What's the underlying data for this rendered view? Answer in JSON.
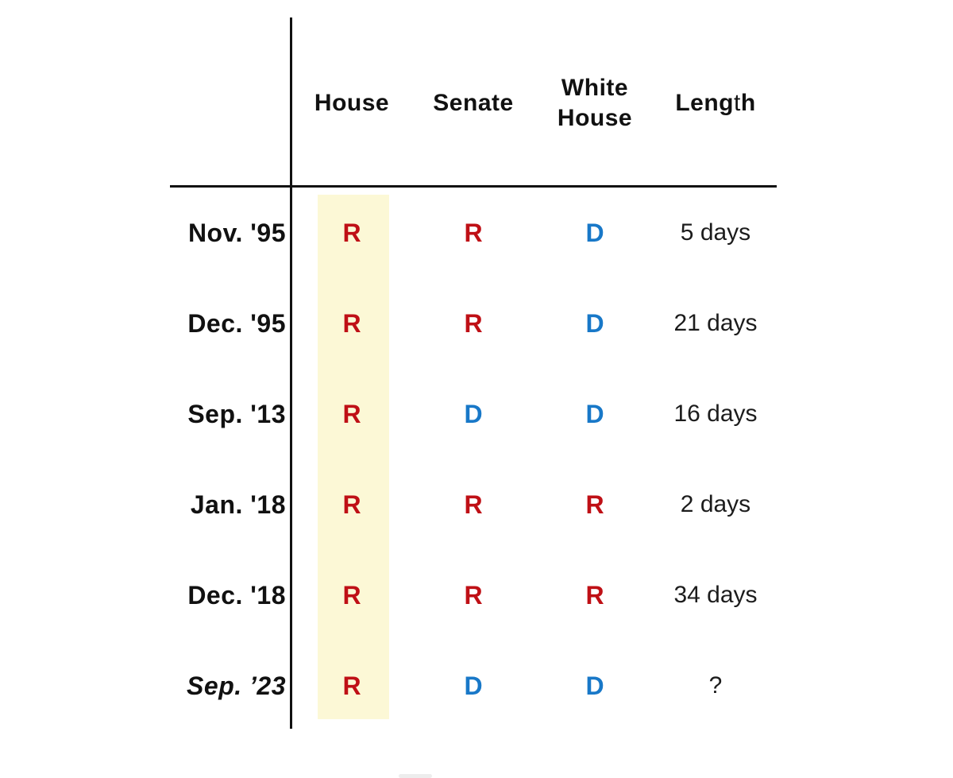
{
  "colors": {
    "republican": "#bf1016",
    "democrat": "#1878c8",
    "highlight": "#fcf8d6",
    "line": "#111111",
    "text": "#111111"
  },
  "header": {
    "columns": [
      "House",
      "Senate",
      "White House",
      "Length"
    ],
    "house": "House",
    "senate": "Senate",
    "white_house": "White House",
    "length_parts": {
      "a": "Leng",
      "b": "t",
      "c": "h"
    }
  },
  "rows": [
    {
      "label": "Nov. '95",
      "house": "R",
      "senate": "R",
      "white_house": "D",
      "length": "5 days"
    },
    {
      "label": "Dec. '95",
      "house": "R",
      "senate": "R",
      "white_house": "D",
      "length": "21 days"
    },
    {
      "label": "Sep. '13",
      "house": "R",
      "senate": "D",
      "white_house": "D",
      "length": "16 days"
    },
    {
      "label": "Jan. '18",
      "house": "R",
      "senate": "R",
      "white_house": "R",
      "length": "2 days"
    },
    {
      "label": "Dec. '18",
      "house": "R",
      "senate": "R",
      "white_house": "R",
      "length": "34 days"
    },
    {
      "label": "Sep. ’23",
      "house": "R",
      "senate": "D",
      "white_house": "D",
      "length": "?"
    }
  ],
  "chart_data": {
    "type": "table",
    "columns": [
      "",
      "House",
      "Senate",
      "White House",
      "Length"
    ],
    "rows": [
      [
        "Nov. '95",
        "R",
        "R",
        "D",
        "5 days"
      ],
      [
        "Dec. '95",
        "R",
        "R",
        "D",
        "21 days"
      ],
      [
        "Sep. '13",
        "R",
        "D",
        "D",
        "16 days"
      ],
      [
        "Jan. '18",
        "R",
        "R",
        "R",
        "2 days"
      ],
      [
        "Dec. '18",
        "R",
        "R",
        "R",
        "34 days"
      ],
      [
        "Sep. ’23",
        "R",
        "D",
        "D",
        "?"
      ]
    ],
    "highlighted_column": "House",
    "cell_colors": {
      "R": "#bf1016",
      "D": "#1878c8"
    }
  }
}
